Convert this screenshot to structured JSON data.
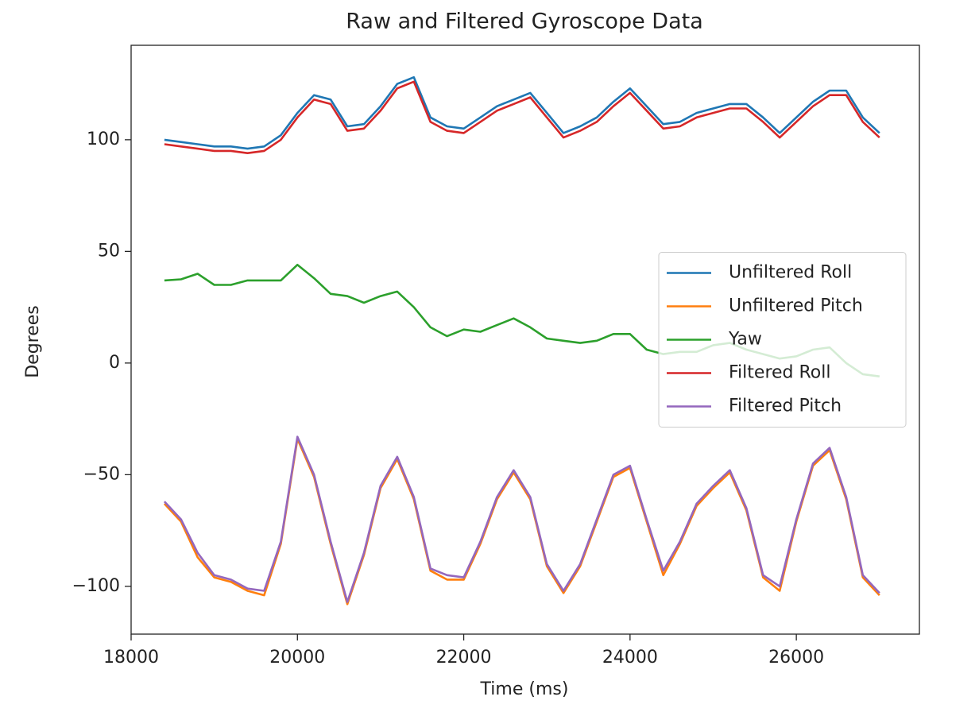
{
  "chart_data": {
    "type": "line",
    "title": "Raw and Filtered Gyroscope Data",
    "xlabel": "Time (ms)",
    "ylabel": "Degrees",
    "x": [
      18400,
      18600,
      18800,
      19000,
      19200,
      19400,
      19600,
      19800,
      20000,
      20200,
      20400,
      20600,
      20800,
      21000,
      21200,
      21400,
      21600,
      21800,
      22000,
      22200,
      22400,
      22600,
      22800,
      23000,
      23200,
      23400,
      23600,
      23800,
      24000,
      24200,
      24400,
      24600,
      24800,
      25000,
      25200,
      25400,
      25600,
      25800,
      26000,
      26200,
      26400,
      26600,
      26800,
      27000
    ],
    "series": [
      {
        "name": "Unfiltered Roll",
        "color": "#1f77b4",
        "values": [
          100,
          99,
          98,
          97,
          97,
          96,
          97,
          102,
          112,
          120,
          118,
          106,
          107,
          115,
          125,
          128,
          110,
          106,
          105,
          110,
          115,
          118,
          121,
          112,
          103,
          106,
          110,
          117,
          123,
          115,
          107,
          108,
          112,
          114,
          116,
          116,
          110,
          103,
          110,
          117,
          122,
          122,
          110,
          103
        ]
      },
      {
        "name": "Unfiltered Pitch",
        "color": "#ff7f0e",
        "values": [
          -63,
          -71,
          -87,
          -96,
          -98,
          -102,
          -104,
          -81,
          -34,
          -51,
          -81,
          -108,
          -86,
          -56,
          -43,
          -61,
          -93,
          -97,
          -97,
          -81,
          -61,
          -49,
          -61,
          -91,
          -103,
          -91,
          -71,
          -51,
          -47,
          -71,
          -95,
          -81,
          -64,
          -56,
          -49,
          -66,
          -96,
          -102,
          -71,
          -46,
          -39,
          -61,
          -96,
          -104
        ]
      },
      {
        "name": "Yaw",
        "color": "#2ca02c",
        "values": [
          37,
          37.5,
          40,
          35,
          35,
          37,
          37,
          37,
          44,
          38,
          31,
          30,
          27,
          30,
          32,
          25,
          16,
          12,
          15,
          14,
          17,
          20,
          16,
          11,
          10,
          9,
          10,
          13,
          13,
          6,
          4,
          5,
          5,
          8,
          9,
          6,
          4,
          2,
          3,
          6,
          7,
          0,
          -5,
          -6
        ]
      },
      {
        "name": "Filtered Roll",
        "color": "#d62728",
        "values": [
          98,
          97,
          96,
          95,
          95,
          94,
          95,
          100,
          110,
          118,
          116,
          104,
          105,
          113,
          123,
          126,
          108,
          104,
          103,
          108,
          113,
          116,
          119,
          110,
          101,
          104,
          108,
          115,
          121,
          113,
          105,
          106,
          110,
          112,
          114,
          114,
          108,
          101,
          108,
          115,
          120,
          120,
          108,
          101
        ]
      },
      {
        "name": "Filtered Pitch",
        "color": "#9467bd",
        "values": [
          -62,
          -70,
          -85,
          -95,
          -97,
          -101,
          -102,
          -80,
          -33,
          -50,
          -80,
          -107,
          -85,
          -55,
          -42,
          -60,
          -92,
          -95,
          -96,
          -80,
          -60,
          -48,
          -60,
          -90,
          -102,
          -90,
          -70,
          -50,
          -46,
          -70,
          -93,
          -80,
          -63,
          -55,
          -48,
          -65,
          -95,
          -100,
          -70,
          -45,
          -38,
          -60,
          -95,
          -103
        ]
      }
    ],
    "xlim": [
      18000,
      27480
    ],
    "xticks": [
      18000,
      20000,
      22000,
      24000,
      26000
    ],
    "ylim": [
      -121.4,
      142.3
    ],
    "yticks": [
      {
        "value": -100,
        "label": "−100"
      },
      {
        "value": -50,
        "label": "−50"
      },
      0,
      50,
      100
    ],
    "legend": "center right"
  }
}
